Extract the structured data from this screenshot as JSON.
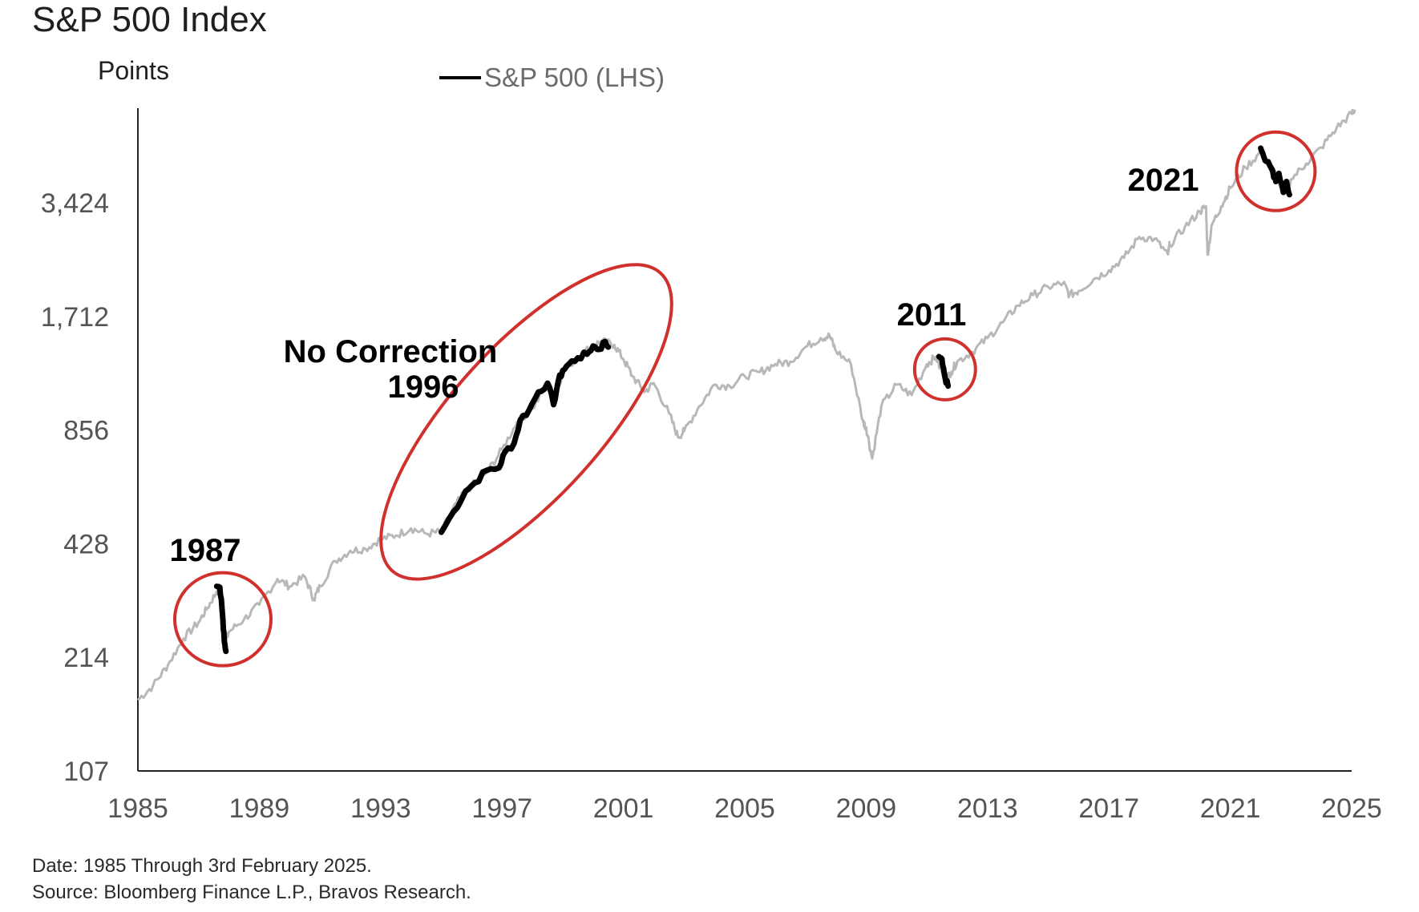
{
  "chart_data": {
    "type": "line",
    "title": "S&P 500 Index",
    "ylabel": "Points",
    "legend": [
      {
        "name": "S&P 500 (LHS)",
        "color": "#000000"
      }
    ],
    "legend_placement": "top-center",
    "yscale": "log",
    "ylim": [
      107,
      6100
    ],
    "xlim": [
      1985,
      2025
    ],
    "y_ticks": [
      107,
      214,
      428,
      856,
      1712,
      3424
    ],
    "y_tick_labels": [
      "107",
      "214",
      "428",
      "856",
      "1,712",
      "3,424"
    ],
    "x_ticks": [
      1985,
      1989,
      1993,
      1997,
      2001,
      2005,
      2009,
      2013,
      2017,
      2021,
      2025
    ],
    "x_tick_labels": [
      "1985",
      "1989",
      "1993",
      "1997",
      "2001",
      "2005",
      "2009",
      "2013",
      "2017",
      "2021",
      "2025"
    ],
    "grid": false,
    "series": [
      {
        "name": "S&P 500 (LHS)",
        "color": "#b8b8b8",
        "x": [
          1985.0,
          1985.5,
          1986.0,
          1986.5,
          1987.0,
          1987.3,
          1987.6,
          1987.75,
          1987.85,
          1988.0,
          1988.5,
          1989.0,
          1989.6,
          1990.0,
          1990.5,
          1990.8,
          1991.0,
          1991.5,
          1992.0,
          1992.5,
          1993.0,
          1993.5,
          1994.0,
          1994.5,
          1995.0,
          1995.5,
          1996.0,
          1996.5,
          1997.0,
          1997.5,
          1998.0,
          1998.5,
          1998.7,
          1999.0,
          1999.5,
          2000.0,
          2000.3,
          2000.7,
          2001.0,
          2001.3,
          2001.7,
          2002.0,
          2002.5,
          2002.8,
          2003.0,
          2003.5,
          2004.0,
          2004.5,
          2005.0,
          2005.5,
          2006.0,
          2006.5,
          2007.0,
          2007.5,
          2007.8,
          2008.0,
          2008.5,
          2008.9,
          2009.0,
          2009.2,
          2009.5,
          2010.0,
          2010.5,
          2011.0,
          2011.3,
          2011.6,
          2011.8,
          2012.0,
          2012.5,
          2013.0,
          2013.5,
          2014.0,
          2014.5,
          2015.0,
          2015.5,
          2015.7,
          2016.0,
          2016.5,
          2017.0,
          2017.5,
          2018.0,
          2018.5,
          2018.95,
          2019.0,
          2019.5,
          2020.0,
          2020.2,
          2020.25,
          2020.4,
          2020.7,
          2021.0,
          2021.5,
          2022.0,
          2022.5,
          2022.75,
          2023.0,
          2023.5,
          2024.0,
          2024.5,
          2025.0,
          2025.1
        ],
        "y": [
          165,
          180,
          205,
          240,
          265,
          290,
          320,
          330,
          230,
          250,
          270,
          295,
          345,
          330,
          350,
          305,
          330,
          385,
          410,
          415,
          440,
          450,
          470,
          455,
          460,
          550,
          610,
          660,
          760,
          900,
          975,
          1130,
          990,
          1230,
          1330,
          1440,
          1470,
          1440,
          1320,
          1190,
          1080,
          1140,
          950,
          820,
          850,
          990,
          1130,
          1120,
          1190,
          1220,
          1280,
          1300,
          1420,
          1500,
          1520,
          1390,
          1280,
          900,
          870,
          720,
          990,
          1130,
          1060,
          1280,
          1340,
          1150,
          1220,
          1300,
          1380,
          1500,
          1650,
          1830,
          1950,
          2050,
          2100,
          1950,
          2000,
          2150,
          2270,
          2450,
          2780,
          2750,
          2500,
          2650,
          2950,
          3250,
          3350,
          2500,
          3000,
          3350,
          3750,
          4250,
          4650,
          4100,
          3650,
          3950,
          4350,
          4800,
          5400,
          5900,
          6050
        ]
      }
    ],
    "highlights": [
      {
        "label": "1987",
        "x": [
          1987.6,
          1987.7,
          1987.75,
          1987.8,
          1987.85,
          1987.9
        ],
        "y": [
          330,
          328,
          305,
          270,
          235,
          222
        ]
      },
      {
        "label": "No Correction\n1996",
        "x": [
          1995.0,
          1995.4,
          1995.8,
          1996.1,
          1996.5,
          1996.9,
          1997.1,
          1997.4,
          1997.6,
          1997.9,
          1998.2,
          1998.5,
          1998.7,
          1998.85,
          1999.0,
          1999.2,
          1999.5,
          1999.8,
          2000.0,
          2000.2,
          2000.4,
          2000.5
        ],
        "y": [
          459,
          520,
          590,
          620,
          670,
          680,
          750,
          790,
          910,
          970,
          1080,
          1140,
          1000,
          1150,
          1230,
          1280,
          1330,
          1360,
          1430,
          1400,
          1470,
          1420
        ]
      },
      {
        "label": "2011",
        "x": [
          2011.4,
          2011.5,
          2011.55,
          2011.6,
          2011.7
        ],
        "y": [
          1340,
          1320,
          1250,
          1180,
          1120
        ]
      },
      {
        "label": "2021",
        "x": [
          2022.0,
          2022.1,
          2022.25,
          2022.4,
          2022.5,
          2022.6,
          2022.75,
          2022.85,
          2022.95
        ],
        "y": [
          4780,
          4550,
          4400,
          4150,
          3900,
          4100,
          3650,
          3900,
          3600
        ]
      }
    ],
    "annotation_color": "#d0312d"
  },
  "footer": {
    "line1": "Date: 1985 Through 3rd February 2025.",
    "line2": "Source: Bloomberg Finance L.P., Bravos Research."
  }
}
